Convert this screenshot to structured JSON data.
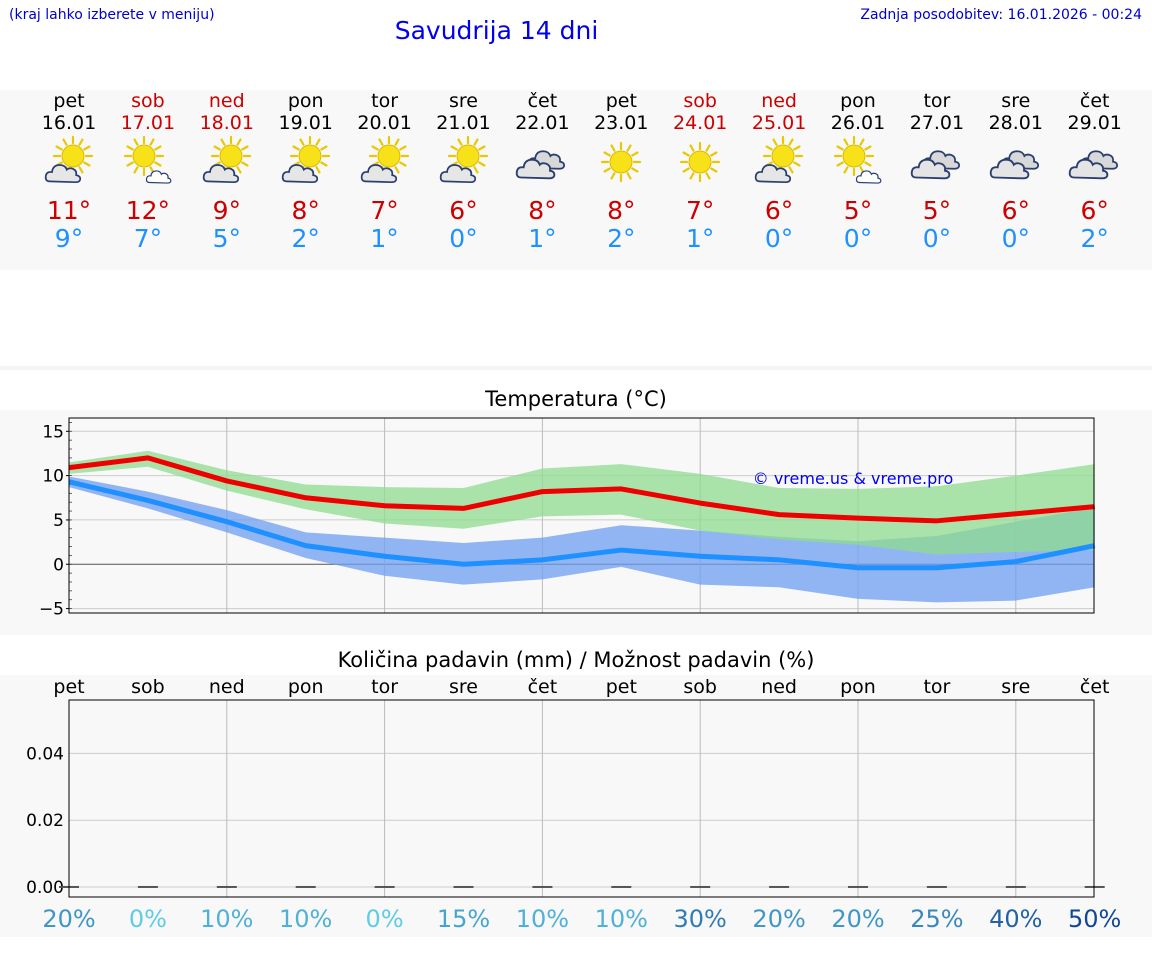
{
  "header": {
    "hint": "(kraj lahko izberete v meniju)",
    "title": "Savudrija 14 dni",
    "updated": "Zadnja posodobitev: 16.01.2026 - 00:24"
  },
  "days": [
    {
      "name": "pet",
      "date": "16.01",
      "weekend": false,
      "icon": "sun-cloud-icon",
      "tmax": "11°",
      "tmin": "9°"
    },
    {
      "name": "sob",
      "date": "17.01",
      "weekend": true,
      "icon": "sun-small-cloud-icon",
      "tmax": "12°",
      "tmin": "7°"
    },
    {
      "name": "ned",
      "date": "18.01",
      "weekend": true,
      "icon": "sun-cloud-icon",
      "tmax": "9°",
      "tmin": "5°"
    },
    {
      "name": "pon",
      "date": "19.01",
      "weekend": false,
      "icon": "sun-cloud-icon",
      "tmax": "8°",
      "tmin": "2°"
    },
    {
      "name": "tor",
      "date": "20.01",
      "weekend": false,
      "icon": "sun-cloud-icon",
      "tmax": "7°",
      "tmin": "1°"
    },
    {
      "name": "sre",
      "date": "21.01",
      "weekend": false,
      "icon": "sun-cloud-icon",
      "tmax": "6°",
      "tmin": "0°"
    },
    {
      "name": "čet",
      "date": "22.01",
      "weekend": false,
      "icon": "cloudy-icon",
      "tmax": "8°",
      "tmin": "1°"
    },
    {
      "name": "pet",
      "date": "23.01",
      "weekend": false,
      "icon": "sun-icon",
      "tmax": "8°",
      "tmin": "2°"
    },
    {
      "name": "sob",
      "date": "24.01",
      "weekend": true,
      "icon": "sun-icon",
      "tmax": "7°",
      "tmin": "1°"
    },
    {
      "name": "ned",
      "date": "25.01",
      "weekend": true,
      "icon": "sun-cloud-icon",
      "tmax": "6°",
      "tmin": "0°"
    },
    {
      "name": "pon",
      "date": "26.01",
      "weekend": false,
      "icon": "sun-small-cloud-icon",
      "tmax": "5°",
      "tmin": "0°"
    },
    {
      "name": "tor",
      "date": "27.01",
      "weekend": false,
      "icon": "cloudy-icon",
      "tmax": "5°",
      "tmin": "0°"
    },
    {
      "name": "sre",
      "date": "28.01",
      "weekend": false,
      "icon": "cloudy-icon",
      "tmax": "6°",
      "tmin": "0°"
    },
    {
      "name": "čet",
      "date": "29.01",
      "weekend": false,
      "icon": "cloudy-icon",
      "tmax": "6°",
      "tmin": "2°"
    }
  ],
  "colors": {
    "max_line": "#ee0000",
    "max_band": "#8fdc8f",
    "min_line": "#1e90ff",
    "min_band": "#6f9ff0",
    "weekend": "#cc0000",
    "credit": "#0000ee"
  },
  "chart_data": [
    {
      "type": "line",
      "title": "Temperatura (°C)",
      "credit": "© vreme.us & vreme.pro",
      "ylim": [
        -5.5,
        16.5
      ],
      "yticks": [
        15,
        10,
        5,
        0,
        -5
      ],
      "ytick_labels": [
        "15",
        "10",
        "5",
        "0",
        "−5"
      ],
      "x": [
        0,
        1,
        2,
        3,
        4,
        5,
        6,
        7,
        8,
        9,
        10,
        11,
        12,
        13
      ],
      "series": [
        {
          "name": "max",
          "values": [
            10.9,
            12.0,
            9.4,
            7.5,
            6.6,
            6.3,
            8.2,
            8.5,
            6.9,
            5.6,
            5.2,
            4.9,
            5.7,
            6.5
          ]
        },
        {
          "name": "max_band_low",
          "values": [
            10.2,
            11.0,
            8.3,
            6.2,
            4.6,
            4.0,
            5.4,
            5.6,
            3.8,
            2.8,
            2.2,
            1.1,
            1.4,
            1.6
          ]
        },
        {
          "name": "max_band_high",
          "values": [
            11.5,
            12.8,
            10.6,
            9.0,
            8.7,
            8.6,
            10.8,
            11.3,
            10.2,
            8.6,
            8.5,
            8.8,
            10.0,
            11.3
          ]
        },
        {
          "name": "min",
          "values": [
            9.3,
            7.2,
            4.8,
            2.1,
            0.9,
            0.0,
            0.5,
            1.6,
            0.9,
            0.5,
            -0.4,
            -0.4,
            0.3,
            2.1
          ]
        },
        {
          "name": "min_band_low",
          "values": [
            8.7,
            6.3,
            3.6,
            0.7,
            -1.3,
            -2.3,
            -1.7,
            -0.3,
            -2.3,
            -2.6,
            -3.9,
            -4.3,
            -4.1,
            -2.6
          ]
        },
        {
          "name": "min_band_high",
          "values": [
            9.9,
            8.2,
            6.1,
            3.6,
            3.0,
            2.4,
            3.0,
            4.4,
            3.8,
            3.1,
            2.6,
            3.2,
            4.8,
            6.4
          ]
        }
      ]
    },
    {
      "type": "bar",
      "title": "Količina padavin (mm) / Možnost padavin (%)",
      "categories": [
        "pet",
        "sob",
        "ned",
        "pon",
        "tor",
        "sre",
        "čet",
        "pet",
        "sob",
        "ned",
        "pon",
        "tor",
        "sre",
        "čet"
      ],
      "values": [
        0,
        0,
        0,
        0,
        0,
        0,
        0,
        0,
        0,
        0,
        0,
        0,
        0,
        0
      ],
      "ylim": [
        -0.003,
        0.056
      ],
      "yticks": [
        0.0,
        0.02,
        0.04
      ],
      "ytick_labels": [
        "0.00",
        "0.02",
        "0.04"
      ],
      "chance_labels": [
        "20%",
        "0%",
        "10%",
        "10%",
        "0%",
        "15%",
        "10%",
        "10%",
        "30%",
        "20%",
        "20%",
        "25%",
        "40%",
        "50%"
      ],
      "chance_values": [
        20,
        0,
        10,
        10,
        0,
        15,
        10,
        10,
        30,
        20,
        20,
        25,
        40,
        50
      ]
    }
  ]
}
